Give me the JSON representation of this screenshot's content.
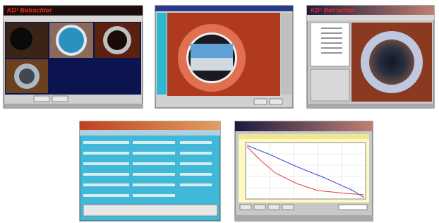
{
  "windows": [
    {
      "title": "KD² Betrachter"
    },
    {
      "title": "KD² Betrachter"
    }
  ]
}
